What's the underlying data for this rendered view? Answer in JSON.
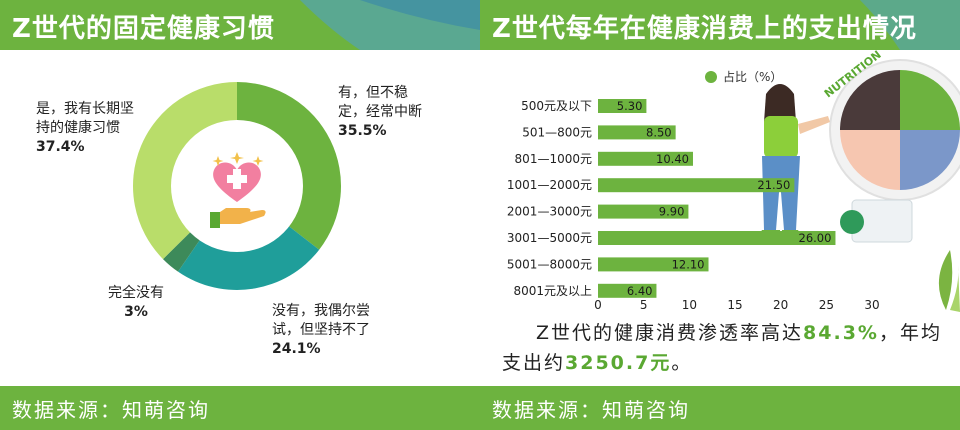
{
  "left_panel": {
    "title": "Z世代的固定健康习惯",
    "footer": "数据来源：知萌咨询",
    "chart_data": {
      "type": "pie",
      "slices": [
        {
          "label_lines": [
            "有，但不稳",
            "定，经常中断"
          ],
          "value": 35.5,
          "pct_text": "35.5%",
          "color": "#6db33f"
        },
        {
          "label_lines": [
            "没有，我偶尔尝",
            "试，但坚持不了"
          ],
          "value": 24.1,
          "pct_text": "24.1%",
          "color": "#1f9e9a"
        },
        {
          "label_lines": [
            "完全没有"
          ],
          "value": 3,
          "pct_text": "3%",
          "color": "#3d8a5a"
        },
        {
          "label_lines": [
            "是，我有长期坚",
            "持的健康习惯"
          ],
          "value": 37.4,
          "pct_text": "37.4%",
          "color": "#b9dd6a"
        }
      ]
    }
  },
  "right_panel": {
    "title": "Z世代每年在健康消费上的支出情况",
    "footer": "数据来源：知萌咨询",
    "chart_data": {
      "type": "bar",
      "orientation": "horizontal",
      "legend": "占比（%）",
      "legend_position": "top",
      "categories": [
        "500元及以下",
        "501—800元",
        "801—1000元",
        "1001—2000元",
        "2001—3000元",
        "3001—5000元",
        "5001—8000元",
        "8001元及以上"
      ],
      "values": [
        5.3,
        8.5,
        10.4,
        21.5,
        9.9,
        26.0,
        12.1,
        6.4
      ],
      "value_labels": [
        "5.30",
        "8.50",
        "10.40",
        "21.50",
        "9.90",
        "26.00",
        "12.10",
        "6.40"
      ],
      "xlim": [
        0,
        30
      ],
      "xticks": [
        "0",
        "5",
        "10",
        "15",
        "20",
        "25",
        "30"
      ],
      "bar_color": "#6db33f",
      "grid": false
    },
    "summary": {
      "part1": "Z世代的健康消费渗透率高达",
      "hl1": "84.3%",
      "part2": "，年均支出约",
      "hl2": "3250.7元",
      "part3": "。"
    },
    "illustration_badge": "NUTRITION"
  }
}
